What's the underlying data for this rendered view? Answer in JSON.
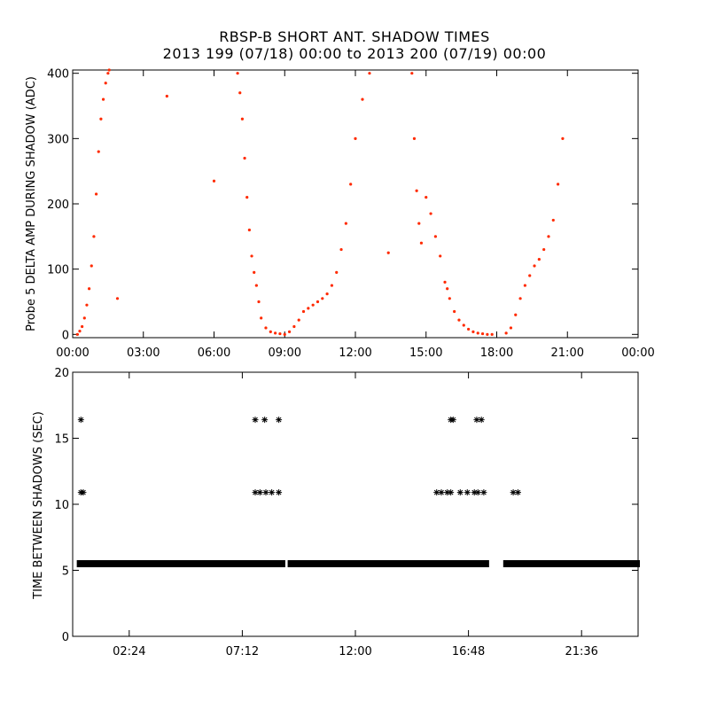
{
  "title_line1": "RBSP-B SHORT ANT. SHADOW TIMES",
  "title_line2": "2013 199 (07/18) 00:00 to 2013 200 (07/19) 00:00",
  "colors": {
    "top_points": "#ff2a00",
    "bottom_points": "#000000",
    "axes": "#000000"
  },
  "chart_data": [
    {
      "type": "scatter",
      "ylabel": "Probe 5 DELTA AMP DURING SHADOW (ADC)",
      "xlabel": "",
      "xlim": [
        0,
        24
      ],
      "ylim": [
        -5,
        405
      ],
      "xtick_labels": [
        "00:00",
        "03:00",
        "06:00",
        "09:00",
        "12:00",
        "15:00",
        "18:00",
        "21:00",
        "00:00"
      ],
      "xtick_hours": [
        0,
        3,
        6,
        9,
        12,
        15,
        18,
        21,
        24
      ],
      "ytick_values": [
        0,
        100,
        200,
        300,
        400
      ],
      "grid": false,
      "series": [
        {
          "marker": "dot",
          "color": "#ff2a00",
          "x": [
            0.2,
            0.3,
            0.4,
            0.5,
            0.6,
            0.7,
            0.8,
            0.9,
            1.0,
            1.1,
            1.2,
            1.3,
            1.4,
            1.5,
            1.55,
            7.0,
            7.1,
            7.2,
            7.3,
            7.4,
            7.5,
            7.6,
            7.7,
            7.8,
            7.9,
            8.0,
            8.2,
            8.4,
            8.6,
            8.8,
            9.0,
            9.2,
            9.4,
            9.6,
            9.8,
            10.0,
            10.2,
            10.4,
            10.6,
            10.8,
            11.0,
            11.2,
            11.4,
            11.6,
            11.8,
            12.0,
            12.3,
            12.6,
            14.4,
            14.5,
            14.6,
            14.7,
            14.8,
            15.0,
            15.2,
            15.4,
            15.6,
            15.8,
            15.9,
            16.0,
            16.2,
            16.4,
            16.6,
            16.8,
            17.0,
            17.2,
            17.4,
            17.6,
            17.8,
            18.4,
            18.6,
            18.8,
            19.0,
            19.2,
            19.4,
            19.6,
            19.8,
            20.0,
            20.2,
            20.4,
            20.6,
            20.8,
            4.0,
            6.0,
            1.9,
            13.4
          ],
          "y": [
            0,
            5,
            12,
            25,
            45,
            70,
            105,
            150,
            215,
            280,
            330,
            360,
            385,
            400,
            405,
            400,
            370,
            330,
            270,
            210,
            160,
            120,
            95,
            75,
            50,
            25,
            10,
            4,
            2,
            1,
            0,
            4,
            12,
            22,
            35,
            40,
            45,
            50,
            55,
            62,
            75,
            95,
            130,
            170,
            230,
            300,
            360,
            400,
            400,
            300,
            220,
            170,
            140,
            210,
            185,
            150,
            120,
            80,
            70,
            55,
            35,
            22,
            14,
            8,
            4,
            2,
            1,
            0,
            0,
            2,
            10,
            30,
            55,
            75,
            90,
            105,
            115,
            130,
            150,
            175,
            230,
            300,
            365,
            235,
            55,
            125
          ]
        }
      ]
    },
    {
      "type": "scatter",
      "ylabel": "TIME BETWEEN SHADOWS (SEC)",
      "xlabel": "",
      "xlim": [
        0,
        24
      ],
      "ylim": [
        0,
        20
      ],
      "xtick_labels": [
        "02:24",
        "07:12",
        "12:00",
        "16:48",
        "21:36"
      ],
      "xtick_hours": [
        2.4,
        7.2,
        12.0,
        16.8,
        21.6
      ],
      "ytick_values": [
        0,
        5,
        10,
        15,
        20
      ],
      "grid": false,
      "series": [
        {
          "marker": "asterisk",
          "color": "#000000",
          "x": [
            0.35,
            0.45,
            0.35,
            7.75,
            7.95,
            8.2,
            8.45,
            8.75,
            7.75,
            8.15,
            8.75,
            15.45,
            15.65,
            15.9,
            16.05,
            16.45,
            16.75,
            17.05,
            17.2,
            17.45,
            16.05,
            16.15,
            17.15,
            17.35,
            18.7,
            18.9
          ],
          "y": [
            10.9,
            10.9,
            16.4,
            10.9,
            10.9,
            10.9,
            10.9,
            10.9,
            16.4,
            16.4,
            16.4,
            10.9,
            10.9,
            10.9,
            10.9,
            10.9,
            10.9,
            10.9,
            10.9,
            10.9,
            16.4,
            16.4,
            16.4,
            16.4,
            10.9,
            10.9
          ]
        },
        {
          "marker": "asterisk-band",
          "color": "#000000",
          "segments": [
            [
              0.25,
              8.95,
              5.5
            ],
            [
              9.2,
              17.6,
              5.5
            ],
            [
              18.35,
              24.0,
              5.5
            ]
          ]
        }
      ]
    }
  ]
}
